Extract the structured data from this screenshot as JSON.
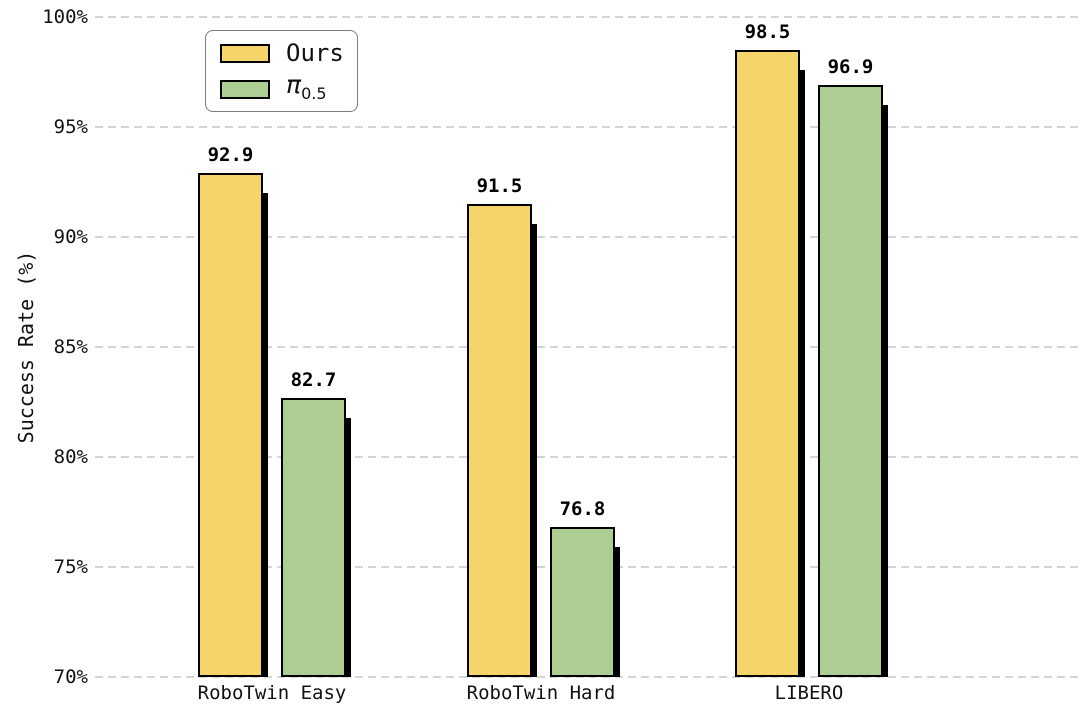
{
  "chart_data": {
    "type": "bar",
    "title": "",
    "xlabel": "",
    "ylabel": "Success Rate (%)",
    "ylim": [
      70,
      100
    ],
    "yticks": [
      70,
      75,
      80,
      85,
      90,
      95,
      100
    ],
    "ytick_labels": [
      "70%",
      "75%",
      "80%",
      "85%",
      "90%",
      "95%",
      "100%"
    ],
    "categories": [
      "RoboTwin Easy",
      "RoboTwin Hard",
      "LIBERO"
    ],
    "series": [
      {
        "name": "Ours",
        "values": [
          92.9,
          91.5,
          98.5
        ],
        "color": "#F5D46A"
      },
      {
        "name": "π_0.5",
        "values": [
          82.7,
          76.8,
          96.9
        ],
        "color": "#ADCD92"
      }
    ],
    "value_labels": [
      [
        "92.9",
        "91.5",
        "98.5"
      ],
      [
        "82.7",
        "76.8",
        "96.9"
      ]
    ],
    "grid": "horizontal dashed",
    "legend_position": "upper left",
    "bar_edge_color": "#000000",
    "bar_shadow_color": "#000000"
  },
  "legend": {
    "items": [
      {
        "main": "Ours",
        "sub": ""
      },
      {
        "main": "π",
        "sub": "0.5"
      }
    ]
  },
  "colors": {
    "background": "#ffffff",
    "gridline": "#d5d5d5",
    "text": "#111111"
  }
}
